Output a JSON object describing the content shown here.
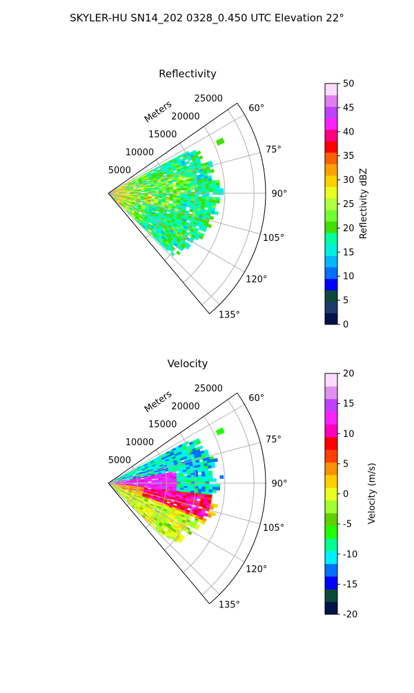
{
  "figure": {
    "title": "SKYLER-HU  SN14_202  0328_0.450 UTC Elevation 22°"
  },
  "chart_data": [
    {
      "type": "polar-sector-heatmap",
      "title": "Reflectivity",
      "range_label": "Meters",
      "range_ticks": [
        "5000",
        "10000",
        "15000",
        "20000",
        "25000"
      ],
      "range_max": 27000,
      "azimuth_ticks": [
        "60°",
        "75°",
        "90°",
        "105°",
        "120°",
        "135°"
      ],
      "azimuth_range_deg": [
        55,
        140
      ],
      "colorbar": {
        "label": "Reflectivity dBZ",
        "ticks": [
          "0",
          "5",
          "10",
          "15",
          "20",
          "25",
          "30",
          "35",
          "40",
          "45",
          "50"
        ],
        "range": [
          0,
          50
        ],
        "colors": [
          "#03124a",
          "#1b3b6b",
          "#0a4a3a",
          "#0000ff",
          "#0070ff",
          "#00b8ff",
          "#00f0e0",
          "#00ffa0",
          "#40e000",
          "#70ff30",
          "#b0ff40",
          "#e8ff20",
          "#ffd000",
          "#ffa000",
          "#ff6000",
          "#ff0000",
          "#ff0080",
          "#ff20ff",
          "#c040ff",
          "#e080f0",
          "#fbdcff"
        ]
      },
      "field": {
        "echo_zone_deg": [
          62,
          134
        ],
        "echo_zone_range_m": [
          0,
          21000
        ],
        "dominant_values_dbz": [
          18,
          22,
          14,
          28
        ],
        "strong_near_radar_dbz": [
          30,
          36
        ]
      }
    },
    {
      "type": "polar-sector-heatmap",
      "title": "Velocity",
      "range_label": "Meters",
      "range_ticks": [
        "5000",
        "10000",
        "15000",
        "20000",
        "25000"
      ],
      "range_max": 27000,
      "azimuth_ticks": [
        "60°",
        "75°",
        "90°",
        "105°",
        "120°",
        "135°"
      ],
      "azimuth_range_deg": [
        55,
        140
      ],
      "colorbar": {
        "label": "Velocity (m/s)",
        "ticks": [
          "-20",
          "-15",
          "-10",
          "-5",
          "0",
          "5",
          "10",
          "15",
          "20"
        ],
        "range": [
          -20,
          20
        ],
        "colors": [
          "#03124a",
          "#0a4a3a",
          "#0000ff",
          "#0070ff",
          "#00f0ff",
          "#00ff90",
          "#20ff00",
          "#60d000",
          "#a0ff30",
          "#e8ff20",
          "#ffd000",
          "#ff9000",
          "#ff4000",
          "#ff0000",
          "#ff00c0",
          "#ff20ff",
          "#c040ff",
          "#e090f0",
          "#fbdcff"
        ]
      },
      "field": {
        "echo_zone_deg": [
          62,
          134
        ],
        "echo_zone_range_m": [
          0,
          21000
        ],
        "north_part_ms": [
          -12,
          -8
        ],
        "center_band_ms": [
          12,
          16
        ],
        "south_part_ms": [
          2,
          6
        ]
      }
    }
  ]
}
